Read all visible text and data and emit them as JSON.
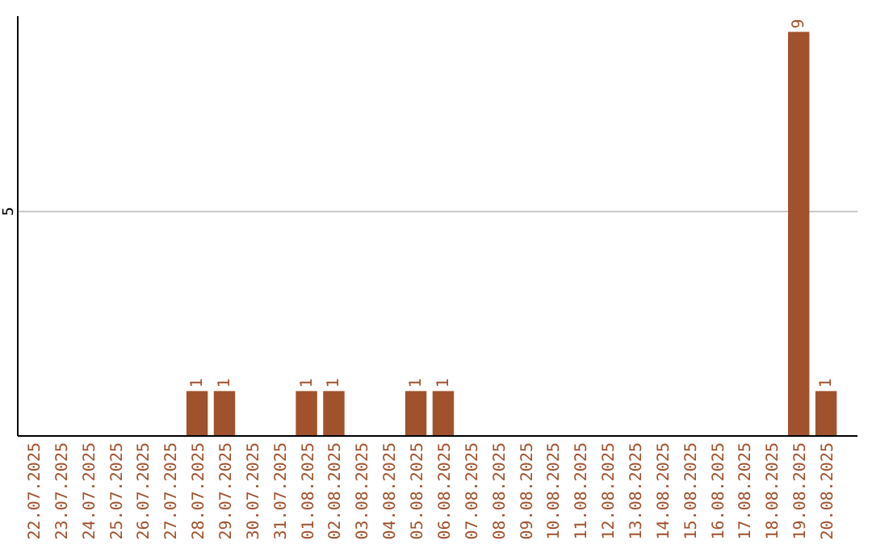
{
  "chart_data": {
    "type": "bar",
    "categories": [
      "22.07.2025",
      "23.07.2025",
      "24.07.2025",
      "25.07.2025",
      "26.07.2025",
      "27.07.2025",
      "28.07.2025",
      "29.07.2025",
      "30.07.2025",
      "31.07.2025",
      "01.08.2025",
      "02.08.2025",
      "03.08.2025",
      "04.08.2025",
      "05.08.2025",
      "06.08.2025",
      "07.08.2025",
      "08.08.2025",
      "09.08.2025",
      "10.08.2025",
      "11.08.2025",
      "12.08.2025",
      "13.08.2025",
      "14.08.2025",
      "15.08.2025",
      "16.08.2025",
      "17.08.2025",
      "18.08.2025",
      "19.08.2025",
      "20.08.2025"
    ],
    "values": [
      0,
      0,
      0,
      0,
      0,
      0,
      1,
      1,
      0,
      0,
      1,
      1,
      0,
      0,
      1,
      1,
      0,
      0,
      0,
      0,
      0,
      0,
      0,
      0,
      0,
      0,
      0,
      0,
      9,
      1
    ],
    "value_labels": [
      null,
      null,
      null,
      null,
      null,
      null,
      "1",
      "1",
      null,
      null,
      "1",
      "1",
      null,
      null,
      "1",
      "1",
      null,
      null,
      null,
      null,
      null,
      null,
      null,
      null,
      null,
      null,
      null,
      null,
      "9",
      "1"
    ],
    "color": "#a0522d",
    "ylim": [
      0,
      9.35
    ],
    "yticks": [
      5
    ],
    "grid": "y"
  }
}
